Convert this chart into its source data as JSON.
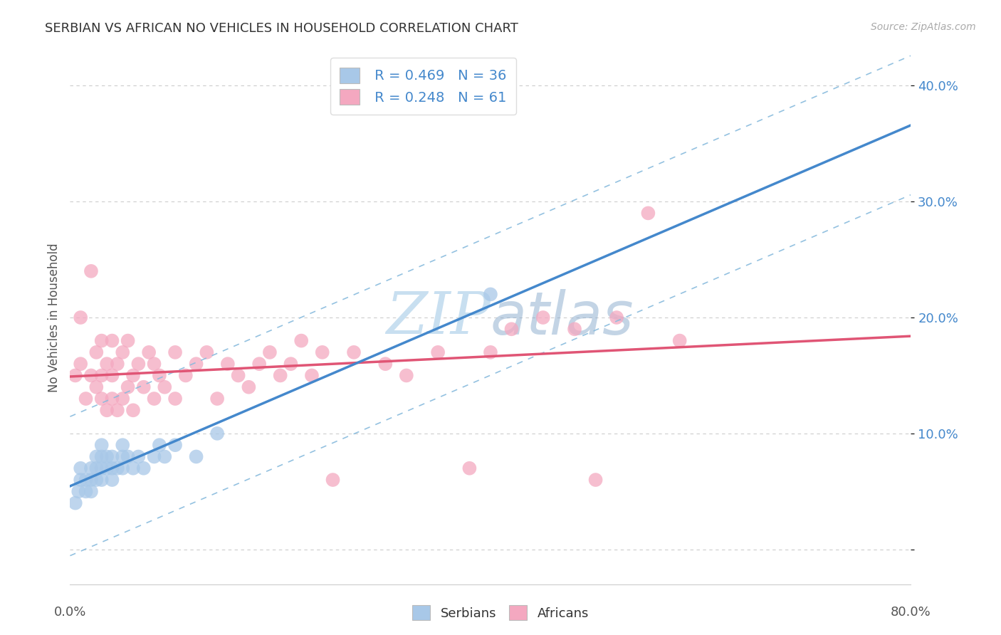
{
  "title": "SERBIAN VS AFRICAN NO VEHICLES IN HOUSEHOLD CORRELATION CHART",
  "source": "Source: ZipAtlas.com",
  "ylabel": "No Vehicles in Household",
  "xlim": [
    0.0,
    0.8
  ],
  "ylim": [
    -0.03,
    0.43
  ],
  "ytick_vals": [
    0.0,
    0.1,
    0.2,
    0.3,
    0.4
  ],
  "ytick_labels": [
    "",
    "10.0%",
    "20.0%",
    "30.0%",
    "40.0%"
  ],
  "serbian_R": 0.469,
  "serbian_N": 36,
  "african_R": 0.248,
  "african_N": 61,
  "serbian_color": "#a8c8e8",
  "african_color": "#f4a8c0",
  "trendline_serbian_color": "#4488cc",
  "trendline_african_color": "#e05575",
  "confidence_serbian_color": "#88bbdd",
  "confidence_african_color": "#f08898",
  "watermark_color": "#c8dff0",
  "background_color": "#ffffff",
  "grid_color": "#cccccc",
  "ytick_color": "#4488cc",
  "title_color": "#333333",
  "source_color": "#aaaaaa",
  "serbian_x": [
    0.005,
    0.008,
    0.01,
    0.01,
    0.015,
    0.015,
    0.02,
    0.02,
    0.02,
    0.025,
    0.025,
    0.025,
    0.03,
    0.03,
    0.03,
    0.03,
    0.035,
    0.035,
    0.04,
    0.04,
    0.04,
    0.045,
    0.05,
    0.05,
    0.05,
    0.055,
    0.06,
    0.065,
    0.07,
    0.08,
    0.085,
    0.09,
    0.1,
    0.12,
    0.14,
    0.4
  ],
  "serbian_y": [
    0.04,
    0.05,
    0.06,
    0.07,
    0.05,
    0.06,
    0.05,
    0.06,
    0.07,
    0.06,
    0.07,
    0.08,
    0.06,
    0.07,
    0.08,
    0.09,
    0.07,
    0.08,
    0.06,
    0.07,
    0.08,
    0.07,
    0.07,
    0.08,
    0.09,
    0.08,
    0.07,
    0.08,
    0.07,
    0.08,
    0.09,
    0.08,
    0.09,
    0.08,
    0.1,
    0.22
  ],
  "african_x": [
    0.005,
    0.01,
    0.01,
    0.015,
    0.02,
    0.02,
    0.025,
    0.025,
    0.03,
    0.03,
    0.03,
    0.035,
    0.035,
    0.04,
    0.04,
    0.04,
    0.045,
    0.045,
    0.05,
    0.05,
    0.055,
    0.055,
    0.06,
    0.06,
    0.065,
    0.07,
    0.075,
    0.08,
    0.08,
    0.085,
    0.09,
    0.1,
    0.1,
    0.11,
    0.12,
    0.13,
    0.14,
    0.15,
    0.16,
    0.17,
    0.18,
    0.19,
    0.2,
    0.21,
    0.22,
    0.23,
    0.24,
    0.25,
    0.27,
    0.3,
    0.32,
    0.35,
    0.38,
    0.4,
    0.42,
    0.45,
    0.48,
    0.5,
    0.52,
    0.55,
    0.58
  ],
  "african_y": [
    0.15,
    0.16,
    0.2,
    0.13,
    0.15,
    0.24,
    0.14,
    0.17,
    0.13,
    0.15,
    0.18,
    0.12,
    0.16,
    0.13,
    0.15,
    0.18,
    0.12,
    0.16,
    0.13,
    0.17,
    0.14,
    0.18,
    0.12,
    0.15,
    0.16,
    0.14,
    0.17,
    0.13,
    0.16,
    0.15,
    0.14,
    0.13,
    0.17,
    0.15,
    0.16,
    0.17,
    0.13,
    0.16,
    0.15,
    0.14,
    0.16,
    0.17,
    0.15,
    0.16,
    0.18,
    0.15,
    0.17,
    0.06,
    0.17,
    0.16,
    0.15,
    0.17,
    0.07,
    0.17,
    0.19,
    0.2,
    0.19,
    0.06,
    0.2,
    0.29,
    0.18
  ]
}
